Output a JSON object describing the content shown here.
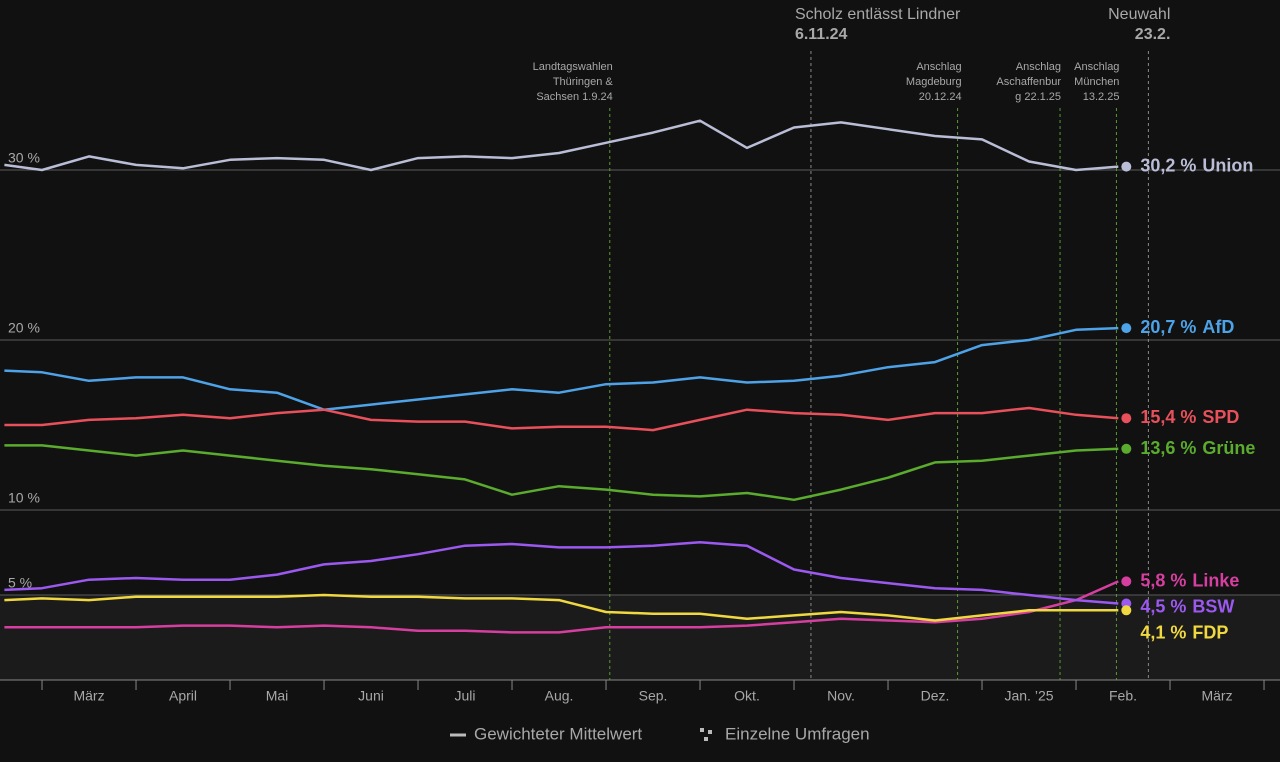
{
  "chart_data": {
    "type": "line",
    "x": [
      1.6,
      2.0,
      2.5,
      3.0,
      3.5,
      4.0,
      4.5,
      5.0,
      5.5,
      6.0,
      6.5,
      7.0,
      7.5,
      8.0,
      8.5,
      9.0,
      9.5,
      10.0,
      10.5,
      11.0,
      11.5,
      12.0,
      12.5,
      13.0,
      13.45
    ],
    "xlim": [
      1.553,
      15.17
    ],
    "xticks": [
      {
        "value": 2.5,
        "label": "März"
      },
      {
        "value": 3.5,
        "label": "April"
      },
      {
        "value": 4.5,
        "label": "Mai"
      },
      {
        "value": 5.5,
        "label": "Juni"
      },
      {
        "value": 6.5,
        "label": "Juli"
      },
      {
        "value": 7.5,
        "label": "Aug."
      },
      {
        "value": 8.5,
        "label": "Sep."
      },
      {
        "value": 9.5,
        "label": "Okt."
      },
      {
        "value": 10.5,
        "label": "Nov."
      },
      {
        "value": 11.5,
        "label": "Dez."
      },
      {
        "value": 12.5,
        "label": "Jan. ’25"
      },
      {
        "value": 13.5,
        "label": "Feb."
      },
      {
        "value": 14.5,
        "label": "März"
      }
    ],
    "ylim": [
      0,
      40
    ],
    "yticks": [
      {
        "value": 5,
        "label": "5 %"
      },
      {
        "value": 10,
        "label": "10 %"
      },
      {
        "value": 20,
        "label": "20 %"
      },
      {
        "value": 30,
        "label": "30 %"
      }
    ],
    "grid": true,
    "series": [
      {
        "name": "Union",
        "color": "#b9bdd6",
        "end_label": "30,2 %",
        "values": [
          30.3,
          30.0,
          30.8,
          30.3,
          30.1,
          30.6,
          30.7,
          30.6,
          30.0,
          30.7,
          30.8,
          30.7,
          31.0,
          31.6,
          32.2,
          32.9,
          31.3,
          32.5,
          32.8,
          32.4,
          32.0,
          31.8,
          30.5,
          30.0,
          30.2
        ]
      },
      {
        "name": "AfD",
        "color": "#4ea3e8",
        "end_label": "20,7 %",
        "values": [
          18.2,
          18.1,
          17.6,
          17.8,
          17.8,
          17.1,
          16.9,
          15.9,
          16.2,
          16.5,
          16.8,
          17.1,
          16.9,
          17.4,
          17.5,
          17.8,
          17.5,
          17.6,
          17.9,
          18.4,
          18.7,
          19.7,
          20.0,
          20.6,
          20.7
        ]
      },
      {
        "name": "SPD",
        "color": "#e8505b",
        "end_label": "15,4 %",
        "values": [
          15.0,
          15.0,
          15.3,
          15.4,
          15.6,
          15.4,
          15.7,
          15.9,
          15.3,
          15.2,
          15.2,
          14.8,
          14.9,
          14.9,
          14.7,
          15.3,
          15.9,
          15.7,
          15.6,
          15.3,
          15.7,
          15.7,
          16.0,
          15.6,
          15.4
        ]
      },
      {
        "name": "Grüne",
        "color": "#5aab2e",
        "end_label": "13,6 %",
        "values": [
          13.8,
          13.8,
          13.5,
          13.2,
          13.5,
          13.2,
          12.9,
          12.6,
          12.4,
          12.1,
          11.8,
          10.9,
          11.4,
          11.2,
          10.9,
          10.8,
          11.0,
          10.6,
          11.2,
          11.9,
          12.8,
          12.9,
          13.2,
          13.5,
          13.6
        ]
      },
      {
        "name": "Linke",
        "color": "#d63fa0",
        "end_label": "5,8 %",
        "values": [
          3.1,
          3.1,
          3.1,
          3.1,
          3.2,
          3.2,
          3.1,
          3.2,
          3.1,
          2.9,
          2.9,
          2.8,
          2.8,
          3.1,
          3.1,
          3.1,
          3.2,
          3.4,
          3.6,
          3.5,
          3.4,
          3.6,
          4.0,
          4.7,
          5.8
        ]
      },
      {
        "name": "BSW",
        "color": "#9b59f0",
        "end_label": "4,5 %",
        "values": [
          5.3,
          5.4,
          5.9,
          6.0,
          5.9,
          5.9,
          6.2,
          6.8,
          7.0,
          7.4,
          7.9,
          8.0,
          7.8,
          7.8,
          7.9,
          8.1,
          7.9,
          6.5,
          6.0,
          5.7,
          5.4,
          5.3,
          5.0,
          4.7,
          4.5
        ]
      },
      {
        "name": "FDP",
        "color": "#f0d840",
        "end_label": "4,1 %",
        "values": [
          4.7,
          4.8,
          4.7,
          4.9,
          4.9,
          4.9,
          4.9,
          5.0,
          4.9,
          4.9,
          4.8,
          4.8,
          4.7,
          4.0,
          3.9,
          3.9,
          3.6,
          3.8,
          4.0,
          3.8,
          3.5,
          3.8,
          4.1,
          4.1,
          4.1
        ]
      }
    ],
    "events": [
      {
        "x": 8.04,
        "lines": [
          "Landtagswahlen",
          "Thüringen &",
          "Sachsen 1.9.24"
        ]
      },
      {
        "x": 10.18,
        "lines": [
          "Scholz entlässt Lindner",
          "6.11.24"
        ]
      },
      {
        "x": 11.74,
        "lines": [
          "Anschlag",
          "Magdeburg",
          "20.12.24"
        ]
      },
      {
        "x": 12.83,
        "lines": [
          "Anschlag",
          "Aschaffenbur",
          "g 22.1.25"
        ]
      },
      {
        "x": 13.43,
        "lines": [
          "Anschlag",
          "München",
          "13.2.25"
        ]
      },
      {
        "x": 13.77,
        "lines": [
          "Neuwahl",
          "23.2."
        ]
      }
    ],
    "legend": [
      "Gewichteter Mittelwert",
      "Einzelne Umfragen"
    ]
  }
}
